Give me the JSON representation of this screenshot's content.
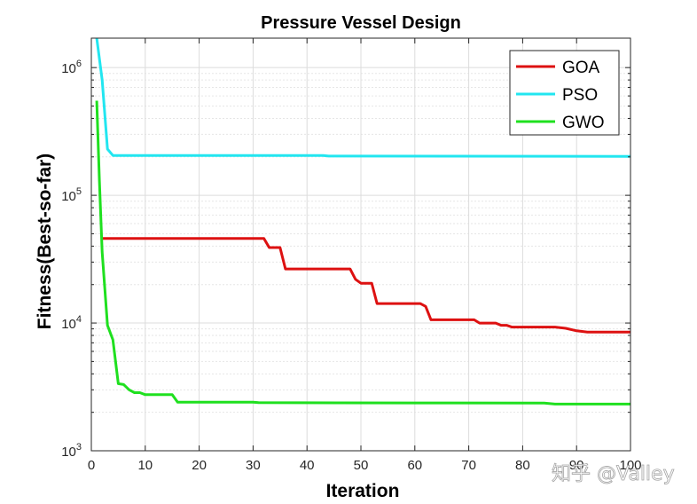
{
  "chart_data": {
    "type": "line",
    "title": "Pressure Vessel Design",
    "xlabel": "Iteration",
    "ylabel": "Fitness(Best-so-far)",
    "xlim": [
      0,
      100
    ],
    "ylim": [
      1000,
      1700000
    ],
    "yscale": "log",
    "grid": true,
    "legend_position": "top-right",
    "x_ticks": [
      "0",
      "10",
      "20",
      "30",
      "40",
      "50",
      "60",
      "70",
      "80",
      "90",
      "100"
    ],
    "y_ticks": [
      {
        "base": "10",
        "exp": "3",
        "value": 1000
      },
      {
        "base": "10",
        "exp": "4",
        "value": 10000
      },
      {
        "base": "10",
        "exp": "5",
        "value": 100000
      },
      {
        "base": "10",
        "exp": "6",
        "value": 1000000
      }
    ],
    "series": [
      {
        "name": "GOA",
        "color": "#dd1111",
        "points": [
          [
            2,
            46000
          ],
          [
            32,
            46000
          ],
          [
            33,
            39000
          ],
          [
            35,
            39000
          ],
          [
            36,
            26500
          ],
          [
            48,
            26500
          ],
          [
            49,
            22000
          ],
          [
            50,
            20500
          ],
          [
            52,
            20500
          ],
          [
            53,
            14200
          ],
          [
            61,
            14200
          ],
          [
            62,
            13500
          ],
          [
            63,
            10600
          ],
          [
            71,
            10600
          ],
          [
            72,
            10000
          ],
          [
            75,
            10000
          ],
          [
            76,
            9600
          ],
          [
            77,
            9600
          ],
          [
            78,
            9300
          ],
          [
            86,
            9300
          ],
          [
            88,
            9100
          ],
          [
            90,
            8700
          ],
          [
            92,
            8500
          ],
          [
            100,
            8500
          ]
        ]
      },
      {
        "name": "PSO",
        "color": "#22e6f0",
        "points": [
          [
            1,
            1700000
          ],
          [
            2,
            800000
          ],
          [
            3,
            230000
          ],
          [
            4,
            205000
          ],
          [
            10,
            205000
          ],
          [
            43,
            205000
          ],
          [
            44,
            203000
          ],
          [
            100,
            202000
          ]
        ]
      },
      {
        "name": "GWO",
        "color": "#1fe01f",
        "points": [
          [
            1,
            550000
          ],
          [
            1.5,
            130000
          ],
          [
            2,
            36000
          ],
          [
            3,
            9600
          ],
          [
            4,
            7400
          ],
          [
            5,
            3350
          ],
          [
            6,
            3300
          ],
          [
            7,
            3000
          ],
          [
            8,
            2850
          ],
          [
            9,
            2850
          ],
          [
            10,
            2750
          ],
          [
            15,
            2750
          ],
          [
            16,
            2400
          ],
          [
            30,
            2400
          ],
          [
            31,
            2380
          ],
          [
            60,
            2370
          ],
          [
            84,
            2360
          ],
          [
            86,
            2320
          ],
          [
            100,
            2320
          ]
        ]
      }
    ]
  },
  "watermark": "知乎 @Valley"
}
